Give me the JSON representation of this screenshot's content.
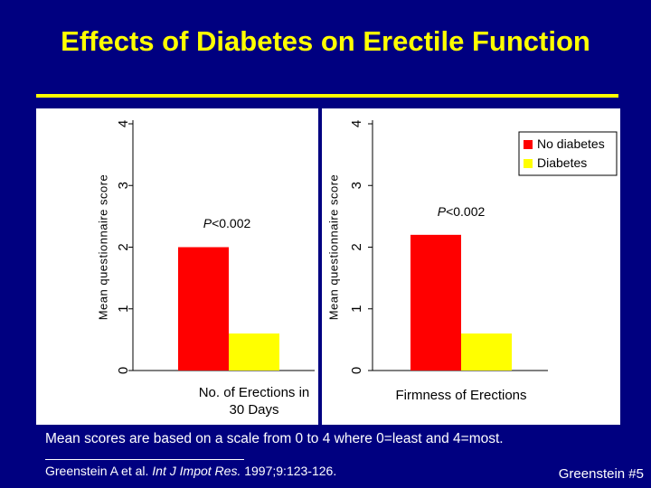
{
  "slide": {
    "title": "Effects of Diabetes on Erectile Function",
    "footnote": "Mean scores are based on a scale from 0 to 4 where 0=least and 4=most.",
    "citation": {
      "authors": "Greenstein A et al.",
      "journal": "Int J Impot Res.",
      "details": "1997;9:123-126."
    },
    "slide_id": "Greenstein #5"
  },
  "colors": {
    "background": "#000080",
    "title": "#FFFF00",
    "no_diabetes": "#FF0000",
    "diabetes": "#FFFF00"
  },
  "chart_data": [
    {
      "type": "bar",
      "title": "",
      "categories": [
        "No. of  Erections in 30 Days"
      ],
      "xlabel_lines": [
        "No. of  Erections in",
        "30 Days"
      ],
      "ylabel": "Mean questionnaire score",
      "ylim": [
        0,
        4
      ],
      "yticks": [
        "0",
        "1",
        "2",
        "3",
        "4"
      ],
      "series": [
        {
          "name": "No diabetes",
          "values": [
            2.0
          ]
        },
        {
          "name": "Diabetes",
          "values": [
            0.6
          ]
        }
      ],
      "annotation": {
        "p_label": "P",
        "p_value": "<0.002"
      }
    },
    {
      "type": "bar",
      "title": "",
      "categories": [
        "Firmness of Erections"
      ],
      "xlabel_lines": [
        "Firmness of Erections"
      ],
      "ylabel": "Mean questionnaire score",
      "ylim": [
        0,
        4
      ],
      "yticks": [
        "0",
        "1",
        "2",
        "3",
        "4"
      ],
      "series": [
        {
          "name": "No diabetes",
          "values": [
            2.2
          ]
        },
        {
          "name": "Diabetes",
          "values": [
            0.6
          ]
        }
      ],
      "annotation": {
        "p_label": "P",
        "p_value": "<0.002"
      },
      "legend": [
        "No diabetes",
        "Diabetes"
      ]
    }
  ]
}
